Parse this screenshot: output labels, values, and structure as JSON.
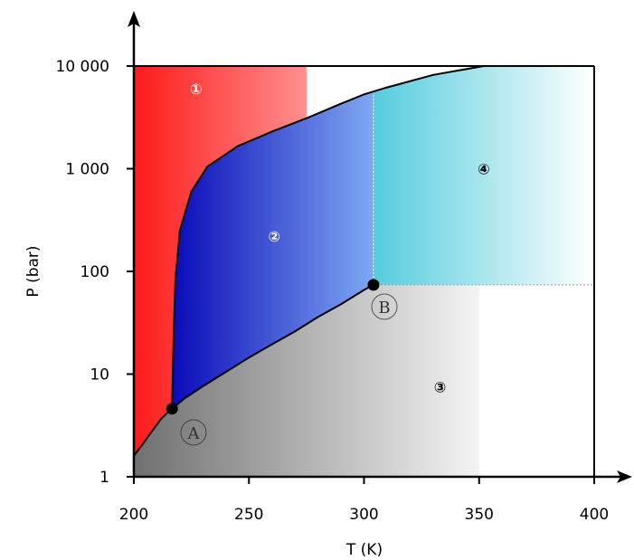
{
  "chart_data": {
    "type": "area",
    "xlabel": "T (K)",
    "ylabel": "P (bar)",
    "xlim": [
      200,
      400
    ],
    "ylim": [
      1,
      10000
    ],
    "yscale": "log",
    "x_ticks": [
      200,
      250,
      300,
      350,
      400
    ],
    "x_tick_labels": [
      "200",
      "250",
      "300",
      "350",
      "400"
    ],
    "y_ticks": [
      1,
      10,
      100,
      1000,
      10000
    ],
    "y_tick_labels": [
      "1",
      "10",
      "100",
      "1 000",
      "10 000"
    ],
    "grid": false,
    "triple_point": {
      "label": "A",
      "T": 216.6,
      "P": 4.6
    },
    "critical_point": {
      "label": "B",
      "T": 304.1,
      "P": 74
    },
    "curves": {
      "sublimation": [
        [
          200,
          1.6
        ],
        [
          204,
          2.1
        ],
        [
          208,
          2.8
        ],
        [
          212,
          3.7
        ],
        [
          216.6,
          4.6
        ]
      ],
      "vaporization": [
        [
          216.6,
          4.6
        ],
        [
          222,
          5.8
        ],
        [
          230,
          7.6
        ],
        [
          240,
          10.5
        ],
        [
          250,
          14.5
        ],
        [
          260,
          19.5
        ],
        [
          270,
          26
        ],
        [
          280,
          36
        ],
        [
          290,
          48
        ],
        [
          300,
          66
        ],
        [
          304.1,
          74
        ]
      ],
      "melting": [
        [
          216.6,
          4.6
        ],
        [
          217.2,
          20
        ],
        [
          218,
          80
        ],
        [
          220,
          250
        ],
        [
          225,
          600
        ],
        [
          232,
          1050
        ],
        [
          245,
          1650
        ],
        [
          260,
          2300
        ],
        [
          275,
          3100
        ],
        [
          290,
          4300
        ],
        [
          300,
          5300
        ],
        [
          310,
          6200
        ],
        [
          330,
          8200
        ],
        [
          352,
          10000
        ]
      ]
    },
    "regions": [
      {
        "id": "1",
        "label": "①",
        "T": 227,
        "P": 6000,
        "color": "#ff2222"
      },
      {
        "id": "2",
        "label": "②",
        "T": 261,
        "P": 220,
        "color": "#2222cc"
      },
      {
        "id": "3",
        "label": "③",
        "T": 333,
        "P": 7.5,
        "color": "#aaaaaa"
      },
      {
        "id": "4",
        "label": "④",
        "T": 352,
        "P": 1000,
        "color": "#55ccdd"
      }
    ]
  }
}
